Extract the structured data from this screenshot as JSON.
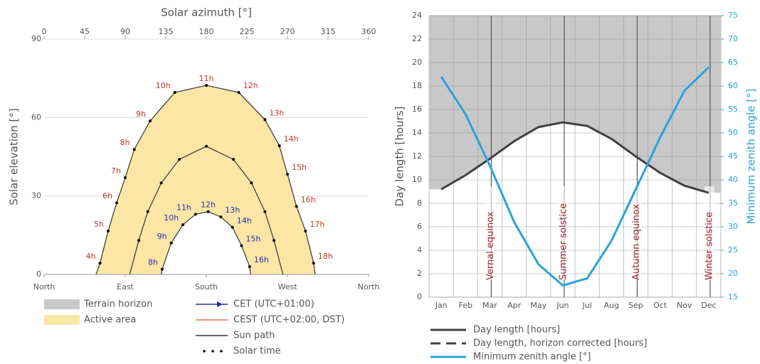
{
  "chart_data": [
    {
      "type": "sunpath",
      "xlabel": "Solar azimuth [°]",
      "ylabel": "Solar elevation [°]",
      "xlim": [
        0,
        360
      ],
      "xticks": [
        0,
        45,
        90,
        135,
        180,
        225,
        270,
        315,
        360
      ],
      "ylim": [
        0,
        90
      ],
      "yticks": [
        0,
        30,
        60,
        90
      ],
      "bottom_ticks": [
        {
          "value": 0,
          "label": "North"
        },
        {
          "value": 90,
          "label": "East"
        },
        {
          "value": 180,
          "label": "South"
        },
        {
          "value": 270,
          "label": "West"
        },
        {
          "value": 360,
          "label": "North"
        }
      ],
      "area_color": "#fbe6a6",
      "path_color": "#333333",
      "paths": [
        {
          "x": [
            57.6,
            62,
            71,
            80.5,
            90,
            100,
            117.6,
            145,
            180,
            216,
            245,
            261,
            270,
            280,
            290,
            299,
            300.7
          ],
          "values": [
            0,
            4.3,
            16.6,
            27.4,
            37,
            47.8,
            58.7,
            69.6,
            72.3,
            69.6,
            59.2,
            49.2,
            38.3,
            26,
            16.6,
            4.3,
            0
          ],
          "labels": [
            null,
            "4h",
            "5h",
            "6h",
            "7h",
            "8h",
            "9h",
            "10h",
            "11h",
            "12h",
            "13h",
            "14h",
            "15h",
            "16h",
            "17h",
            "18h",
            null
          ],
          "label_color": "#c0392b"
        },
        {
          "x": [
            95,
            105,
            115,
            130,
            150,
            180,
            210,
            230,
            245,
            255,
            265
          ],
          "values": [
            0,
            13,
            24,
            35,
            44,
            49,
            44,
            35,
            24,
            13,
            0
          ]
        },
        {
          "x": [
            130,
            131,
            141,
            154,
            168,
            182,
            196,
            209,
            219,
            228,
            229
          ],
          "values": [
            0,
            2,
            12,
            19,
            23,
            24,
            22,
            18,
            11,
            3,
            0
          ],
          "labels": [
            null,
            "8h",
            "9h",
            "10h",
            "11h",
            "12h",
            "13h",
            "14h",
            "15h",
            "16h",
            null
          ],
          "label_color": "#2b2bb0"
        }
      ],
      "legend": [
        {
          "name": "Terrain horizon",
          "color": "#c8c8c8",
          "kind": "area"
        },
        {
          "name": "Active area",
          "color": "#fbe6a6",
          "kind": "area"
        },
        {
          "name": "CET (UTC+01:00)",
          "color": "#2b2bb0",
          "kind": "arrow"
        },
        {
          "name": "CEST (UTC+02:00, DST)",
          "color": "#e07060",
          "kind": "line"
        },
        {
          "name": "Sun path",
          "color": "#333333",
          "kind": "line"
        },
        {
          "name": "Solar time",
          "color": "#000000",
          "kind": "dots"
        }
      ]
    },
    {
      "type": "line",
      "ylabel": "Day length [hours]",
      "y2label": "Minimum zenith angle [°]",
      "categories": [
        "Jan",
        "Feb",
        "Mar",
        "Apr",
        "May",
        "Jun",
        "Jul",
        "Aug",
        "Sep",
        "Oct",
        "Nov",
        "Dec"
      ],
      "ylim": [
        0,
        24
      ],
      "yticks": [
        0,
        2,
        4,
        6,
        8,
        10,
        12,
        14,
        16,
        18,
        20,
        22,
        24
      ],
      "y2lim": [
        15,
        75
      ],
      "y2ticks": [
        15,
        20,
        25,
        30,
        35,
        40,
        45,
        50,
        55,
        60,
        65,
        70,
        75
      ],
      "grid": true,
      "series": [
        {
          "name": "Day length [hours]",
          "color": "#404040",
          "fill_above": "#c8c8c8",
          "values": [
            9.2,
            10.4,
            11.8,
            13.3,
            14.5,
            14.9,
            14.6,
            13.5,
            12.0,
            10.6,
            9.5,
            8.9
          ]
        },
        {
          "name": "Day length, horizon corrected [hours]",
          "color": "#404040",
          "dash": true,
          "values": [
            9.2,
            10.4,
            11.8,
            13.3,
            14.5,
            14.9,
            14.6,
            13.5,
            12.0,
            10.6,
            9.5,
            8.9
          ]
        },
        {
          "name": "Minimum zenith angle [°]",
          "color": "#29a3d9",
          "axis": "y2",
          "values": [
            62,
            54,
            43,
            31,
            22,
            17.5,
            19,
            27,
            38,
            49,
            59,
            64
          ]
        }
      ],
      "annotation_color": "#a0262a",
      "annotations": [
        {
          "text": "Vernal equinox",
          "category": "Mar"
        },
        {
          "text": "Summer solstice",
          "category": "Jun"
        },
        {
          "text": "Autumn equinox",
          "category": "Sep"
        },
        {
          "text": "Winter solstice",
          "category": "Dec"
        }
      ]
    }
  ]
}
